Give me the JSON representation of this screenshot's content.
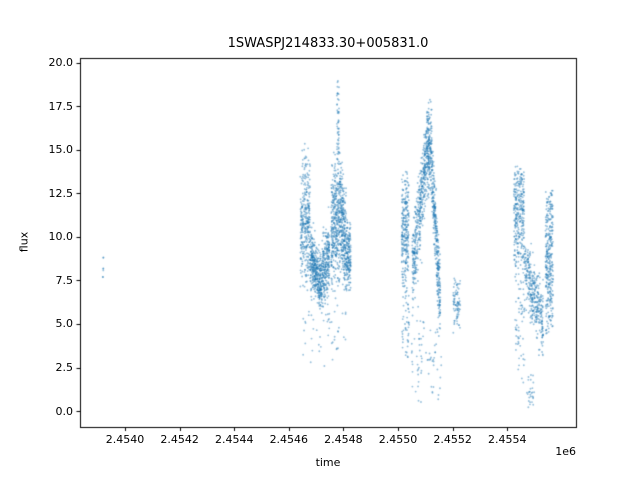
{
  "figure": {
    "background": "#ffffff"
  },
  "chart_data": {
    "type": "scatter",
    "title": "1SWASPJ214833.30+005831.0",
    "xlabel": "time",
    "ylabel": "flux",
    "offset_label": "1e6",
    "xlim": [
      2453835,
      2455652
    ],
    "ylim": [
      -0.91,
      20.26
    ],
    "xticks": [
      2454000,
      2454200,
      2454400,
      2454600,
      2454800,
      2455000,
      2455200,
      2455400
    ],
    "xtick_labels": [
      "2.4540",
      "2.4542",
      "2.4544",
      "2.4546",
      "2.4548",
      "2.4550",
      "2.4552",
      "2.4554"
    ],
    "yticks": [
      0.0,
      2.5,
      5.0,
      7.5,
      10.0,
      12.5,
      15.0,
      17.5,
      20.0
    ],
    "ytick_labels": [
      "0.0",
      "2.5",
      "5.0",
      "7.5",
      "10.0",
      "12.5",
      "15.0",
      "17.5",
      "20.0"
    ],
    "grid": false,
    "legend": null,
    "marker": {
      "color": "#1f77b4",
      "alpha": 0.45,
      "radius_px": 0.95
    },
    "seed": 1234567,
    "bands": [
      {
        "name": "early-isolated-points",
        "x0": 2453918,
        "x1": 2453923,
        "n": 7,
        "y0": 8.3,
        "y1": 8.3,
        "sd": 0.5,
        "ymin": 7.6,
        "ymax": 8.9
      },
      {
        "name": "group1-core-band",
        "x0": 2454642,
        "x1": 2454678,
        "n": 300,
        "y0": 10.4,
        "y1": 10.8,
        "sd": 1.7,
        "ymin": 6.7,
        "ymax": 15.3
      },
      {
        "name": "group1-top-scatter",
        "x0": 2454648,
        "x1": 2454672,
        "n": 22,
        "y0": 14.1,
        "y1": 14.1,
        "sd": 0.8,
        "ymin": 13.0,
        "ymax": 15.7
      },
      {
        "name": "group1-dip-fall",
        "x0": 2454678,
        "x1": 2454715,
        "n": 340,
        "y0": 8.9,
        "y1": 7.3,
        "sd": 0.85,
        "ymin": 5.8,
        "ymax": 11.2
      },
      {
        "name": "group1-dip-rise",
        "x0": 2454715,
        "x1": 2454749,
        "n": 300,
        "y0": 7.3,
        "y1": 9.0,
        "sd": 0.95,
        "ymin": 6.0,
        "ymax": 11.8
      },
      {
        "name": "group1-second-core",
        "x0": 2454755,
        "x1": 2454788,
        "n": 380,
        "y0": 10.4,
        "y1": 11.4,
        "sd": 1.9,
        "ymin": 6.8,
        "ymax": 14.9
      },
      {
        "name": "group1-tall-spike",
        "x0": 2454776,
        "x1": 2454784,
        "n": 50,
        "y0": 16.2,
        "y1": 16.6,
        "sd": 1.5,
        "ymin": 14.0,
        "ymax": 19.3
      },
      {
        "name": "group1-fall",
        "x0": 2454788,
        "x1": 2454810,
        "n": 260,
        "y0": 11.8,
        "y1": 9.0,
        "sd": 1.5,
        "ymin": 6.9,
        "ymax": 14.4
      },
      {
        "name": "group1-tail",
        "x0": 2454810,
        "x1": 2454827,
        "n": 160,
        "y0": 9.0,
        "y1": 8.6,
        "sd": 1.1,
        "ymin": 6.8,
        "ymax": 11.4
      },
      {
        "name": "group1-low-scatter",
        "x0": 2454650,
        "x1": 2454810,
        "n": 55,
        "y0": 4.9,
        "y1": 4.7,
        "sd": 1.3,
        "ymin": 2.4,
        "ymax": 6.7
      },
      {
        "name": "group2-left-core",
        "x0": 2455013,
        "x1": 2455040,
        "n": 260,
        "y0": 10.2,
        "y1": 10.6,
        "sd": 1.9,
        "ymin": 5.6,
        "ymax": 13.9
      },
      {
        "name": "group2-left-low",
        "x0": 2455015,
        "x1": 2455042,
        "n": 40,
        "y0": 5.2,
        "y1": 5.0,
        "sd": 1.4,
        "ymin": 3.0,
        "ymax": 7.2
      },
      {
        "name": "group2-peak-rise",
        "x0": 2455052,
        "x1": 2455106,
        "n": 420,
        "y0": 8.0,
        "y1": 14.8,
        "sd": 1.2,
        "ymin": 5.3,
        "ymax": 17.2
      },
      {
        "name": "group2-peak-top",
        "x0": 2455106,
        "x1": 2455124,
        "n": 200,
        "y0": 15.2,
        "y1": 14.6,
        "sd": 1.3,
        "ymin": 12.2,
        "ymax": 19.0
      },
      {
        "name": "group2-peak-fall",
        "x0": 2455124,
        "x1": 2455155,
        "n": 300,
        "y0": 13.5,
        "y1": 6.2,
        "sd": 1.1,
        "ymin": 4.6,
        "ymax": 16.0
      },
      {
        "name": "group2-low-scatter",
        "x0": 2455050,
        "x1": 2455160,
        "n": 70,
        "y0": 2.9,
        "y1": 2.5,
        "sd": 1.5,
        "ymin": 0.05,
        "ymax": 5.2
      },
      {
        "name": "group2-small-right",
        "x0": 2455202,
        "x1": 2455228,
        "n": 80,
        "y0": 6.1,
        "y1": 6.3,
        "sd": 0.8,
        "ymin": 4.4,
        "ymax": 7.7
      },
      {
        "name": "group3-left-core",
        "x0": 2455424,
        "x1": 2455462,
        "n": 300,
        "y0": 11.0,
        "y1": 11.4,
        "sd": 1.8,
        "ymin": 7.3,
        "ymax": 14.2
      },
      {
        "name": "group3-left-low-tail",
        "x0": 2455428,
        "x1": 2455466,
        "n": 60,
        "y0": 5.6,
        "y1": 5.2,
        "sd": 2.0,
        "ymin": 1.2,
        "ymax": 8.0
      },
      {
        "name": "group3-descending",
        "x0": 2455462,
        "x1": 2455532,
        "n": 340,
        "y0": 8.6,
        "y1": 4.9,
        "sd": 0.95,
        "ymin": 3.1,
        "ymax": 10.8
      },
      {
        "name": "group3-deep-low",
        "x0": 2455470,
        "x1": 2455500,
        "n": 28,
        "y0": 1.4,
        "y1": 1.1,
        "sd": 0.8,
        "ymin": 0.05,
        "ymax": 3.0
      },
      {
        "name": "group3-right-core",
        "x0": 2455540,
        "x1": 2455568,
        "n": 300,
        "y0": 8.3,
        "y1": 8.7,
        "sd": 2.2,
        "ymin": 4.0,
        "ymax": 12.7
      },
      {
        "name": "group3-right-top",
        "x0": 2455544,
        "x1": 2455566,
        "n": 25,
        "y0": 11.9,
        "y1": 11.9,
        "sd": 0.5,
        "ymin": 11.0,
        "ymax": 12.6
      }
    ]
  }
}
